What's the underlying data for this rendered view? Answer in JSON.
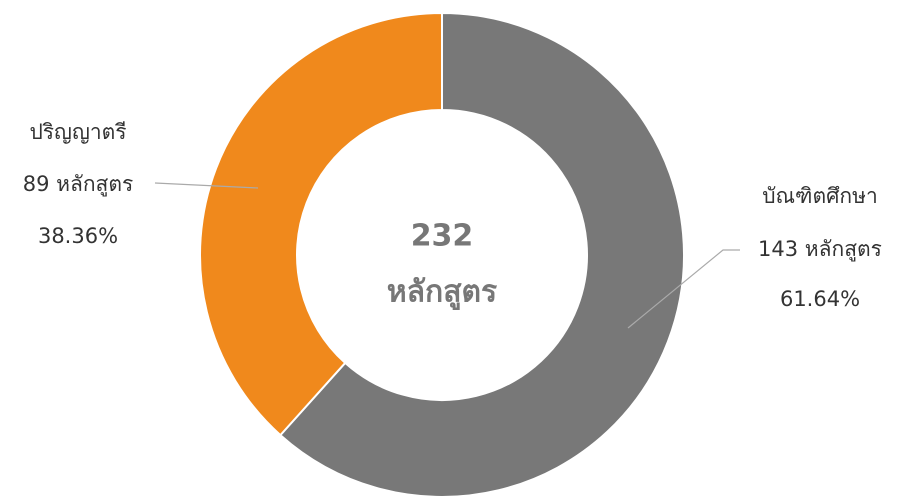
{
  "chart_data": {
    "type": "donut",
    "categories": [
      "บัณฑิตศึกษา",
      "ปริญญาตรี"
    ],
    "values": [
      143,
      89
    ],
    "value_labels": [
      "143 หลักสูตร",
      "89 หลักสูตร"
    ],
    "percents": [
      61.64,
      38.36
    ],
    "percent_labels": [
      "61.64%",
      "38.36%"
    ],
    "colors": [
      "#787878",
      "#f0891c"
    ],
    "total": 232,
    "center_label": "หลักสูตร"
  }
}
